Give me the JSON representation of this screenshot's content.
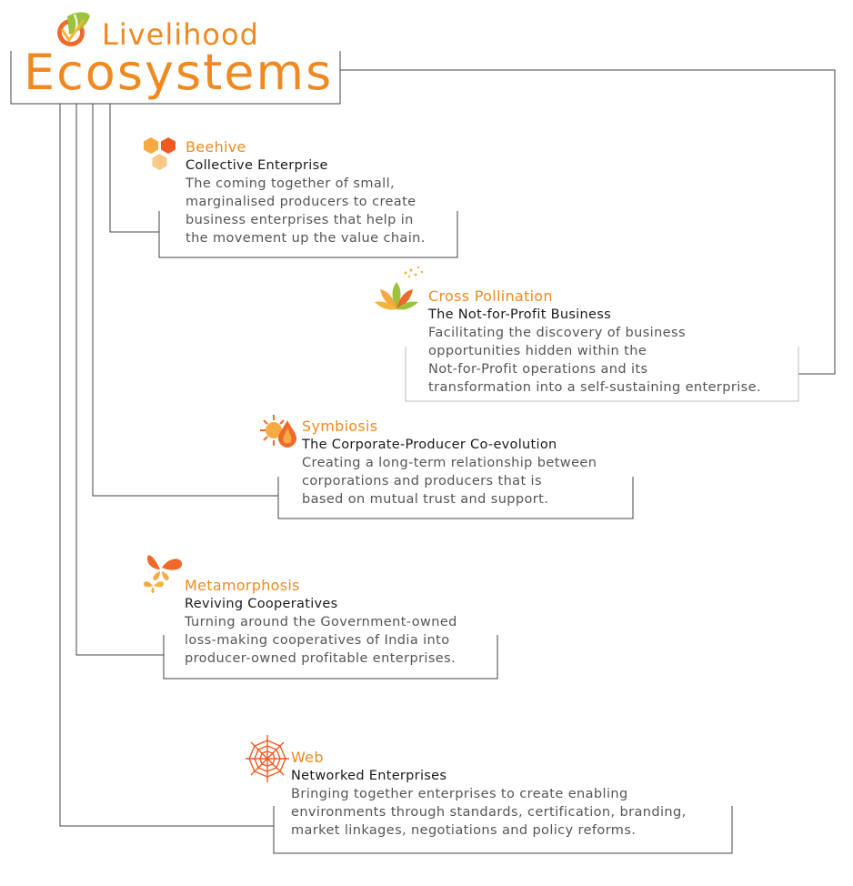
{
  "title": {
    "line1": "Livelihood",
    "line2": "Ecosystems"
  },
  "colors": {
    "accent": "#ef8a22",
    "connector": "#444444",
    "heading_text": "#1a1a1a",
    "body_text": "#555555"
  },
  "items": [
    {
      "name": "Beehive",
      "subtitle": "Collective Enterprise",
      "description": "The coming together of small,\nmarginalised producers to create\nbusiness enterprises that help in\nthe movement up the value chain.",
      "icon": "hexagon-cluster-icon"
    },
    {
      "name": "Cross Pollination",
      "subtitle": "The Not-for-Profit Business",
      "description": "Facilitating the discovery of business\nopportunities hidden within the\nNot-for-Profit operations and its\ntransformation into a self-sustaining enterprise.",
      "icon": "flower-icon"
    },
    {
      "name": "Symbiosis",
      "subtitle": "The Corporate-Producer Co-evolution",
      "description": "Creating a long-term relationship between\ncorporations and producers that is\nbased on mutual trust and support.",
      "icon": "sun-drop-icon"
    },
    {
      "name": "Metamorphosis",
      "subtitle": "Reviving Cooperatives",
      "description": "Turning around the Government-owned\nloss-making cooperatives of India into\nproducer-owned profitable enterprises.",
      "icon": "butterfly-icon"
    },
    {
      "name": "Web",
      "subtitle": "Networked Enterprises",
      "description": "Bringing together enterprises to create enabling\nenvironments through standards, certification, branding,\nmarket linkages, negotiations and policy reforms.",
      "icon": "spider-web-icon"
    }
  ]
}
